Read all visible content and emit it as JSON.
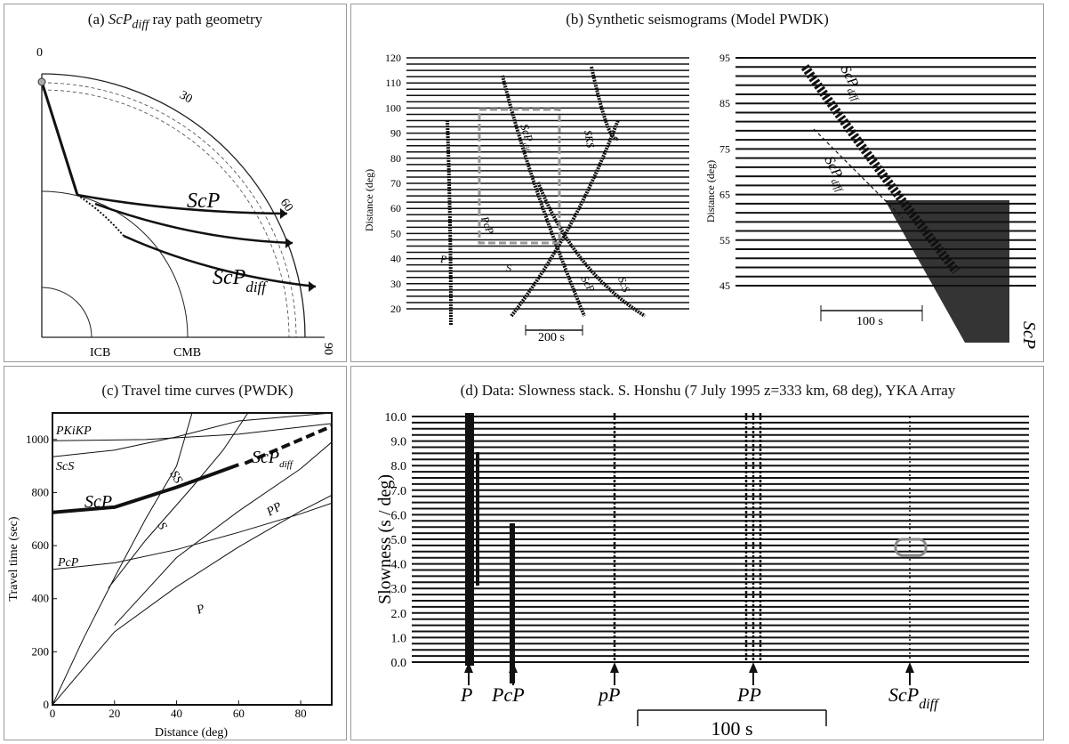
{
  "panel_a": {
    "title_prefix": "(a) ",
    "title_phase": "ScP",
    "title_sub": "diff",
    "title_suffix": " ray path geometry",
    "deg_ticks": [
      "0",
      "30",
      "60",
      "90"
    ],
    "labels": {
      "icb": "ICB",
      "cmb": "CMB"
    },
    "rays": [
      {
        "base": "ScP",
        "sub": ""
      },
      {
        "base": "ScP",
        "sub": "diff"
      }
    ]
  },
  "panel_b": {
    "title": "(b) Synthetic seismograms (Model PWDK)",
    "left": {
      "ylabel": "Distance (deg)",
      "yticks": [
        "20",
        "30",
        "40",
        "50",
        "60",
        "70",
        "80",
        "90",
        "100",
        "110",
        "120"
      ],
      "scale": "200 s",
      "phases": [
        "P",
        "PcP",
        "S",
        "ScP",
        "SKS",
        "ScS",
        "ScP",
        "diff"
      ]
    },
    "right": {
      "ylabel": "Distance (deg)",
      "yticks": [
        "45",
        "55",
        "65",
        "75",
        "85",
        "95"
      ],
      "scale": "100 s",
      "phases": [
        "ScP",
        "diff",
        "ScP",
        "diff",
        "ScP"
      ]
    }
  },
  "panel_c": {
    "title": "(c) Travel time curves (PWDK)",
    "xlabel": "Distance (deg)",
    "ylabel": "Travel time (sec)",
    "curve_labels": [
      "PKiKP",
      "ScS",
      "SS",
      "ScP",
      "diff",
      "S",
      "PP",
      "PcP",
      "P"
    ]
  },
  "panel_d": {
    "title": "(d) Data: Slowness stack.  S. Honshu (7 July 1995 z=333 km, 68 deg), YKA Array",
    "ylabel": "Slowness (s / deg)",
    "yticks": [
      "0.0",
      "1.0",
      "2.0",
      "3.0",
      "4.0",
      "5.0",
      "6.0",
      "7.0",
      "8.0",
      "9.0",
      "10.0"
    ],
    "scale": "100 s",
    "arrivals": [
      {
        "base": "P",
        "sub": ""
      },
      {
        "base": "PcP",
        "sub": ""
      },
      {
        "base": "pP",
        "sub": ""
      },
      {
        "base": "PP",
        "sub": ""
      },
      {
        "base": "ScP",
        "sub": "diff"
      }
    ]
  },
  "chart_data": {
    "type": "line",
    "title": "(c) Travel time curves (PWDK)",
    "xlabel": "Distance (deg)",
    "ylabel": "Travel time (sec)",
    "xlim": [
      0,
      90
    ],
    "ylim": [
      0,
      1100
    ],
    "xticks": [
      0,
      20,
      40,
      60,
      80
    ],
    "yticks": [
      0,
      200,
      400,
      600,
      800,
      1000
    ],
    "series": [
      {
        "name": "P",
        "x": [
          0,
          20,
          40,
          60,
          80,
          90
        ],
        "y": [
          0,
          275,
          445,
          595,
          730,
          790
        ]
      },
      {
        "name": "PP",
        "x": [
          20,
          40,
          60,
          80,
          90
        ],
        "y": [
          300,
          555,
          730,
          890,
          990
        ]
      },
      {
        "name": "PcP",
        "x": [
          0,
          20,
          40,
          60,
          80,
          90
        ],
        "y": [
          510,
          535,
          585,
          650,
          720,
          760
        ]
      },
      {
        "name": "S",
        "x": [
          0,
          10,
          20,
          30,
          40,
          45
        ],
        "y": [
          0,
          250,
          480,
          700,
          900,
          1100
        ]
      },
      {
        "name": "SS",
        "x": [
          18,
          30,
          45,
          55,
          63
        ],
        "y": [
          440,
          620,
          820,
          960,
          1100
        ]
      },
      {
        "name": "ScS",
        "x": [
          0,
          20,
          40,
          60,
          80,
          90
        ],
        "y": [
          935,
          960,
          1010,
          1070,
          1090,
          1100
        ]
      },
      {
        "name": "PKiKP",
        "x": [
          0,
          30,
          60,
          90
        ],
        "y": [
          995,
          1000,
          1020,
          1060
        ]
      },
      {
        "name": "ScP",
        "x": [
          0,
          20,
          40,
          60
        ],
        "y": [
          725,
          745,
          820,
          905
        ]
      },
      {
        "name": "ScPdiff",
        "x": [
          62,
          75,
          90
        ],
        "y": [
          910,
          975,
          1050
        ]
      }
    ]
  }
}
